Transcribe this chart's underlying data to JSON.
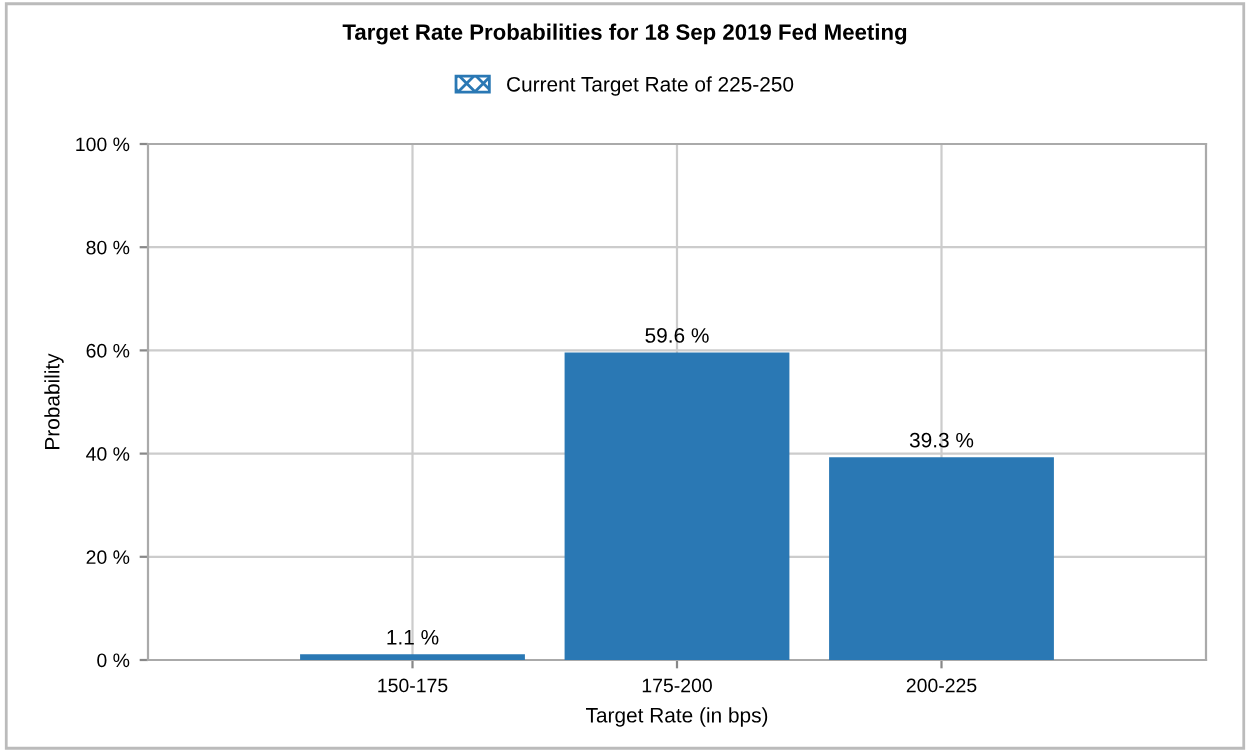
{
  "chart_data": {
    "type": "bar",
    "title": "Target Rate Probabilities for 18 Sep 2019 Fed Meeting",
    "xlabel": "Target Rate (in bps)",
    "ylabel": "Probability",
    "categories": [
      "150-175",
      "175-200",
      "200-225"
    ],
    "series": [
      {
        "name": "Current Target Rate of 225-250",
        "color": "#2a78b4",
        "values": [
          null,
          null,
          null
        ]
      },
      {
        "color": "#2a78b4",
        "values": [
          1.1,
          59.6,
          39.3
        ],
        "value_labels": [
          "1.1 %",
          "59.6 %",
          "39.3 %"
        ]
      }
    ],
    "ylim": [
      0,
      100
    ],
    "yticks": [
      {
        "value": 0,
        "label": "0 %"
      },
      {
        "value": 20,
        "label": "20 %"
      },
      {
        "value": 40,
        "label": "40 %"
      },
      {
        "value": 60,
        "label": "60 %"
      },
      {
        "value": 80,
        "label": "80 %"
      },
      {
        "value": 100,
        "label": "100 %"
      }
    ],
    "grid": true,
    "legend": "top"
  }
}
